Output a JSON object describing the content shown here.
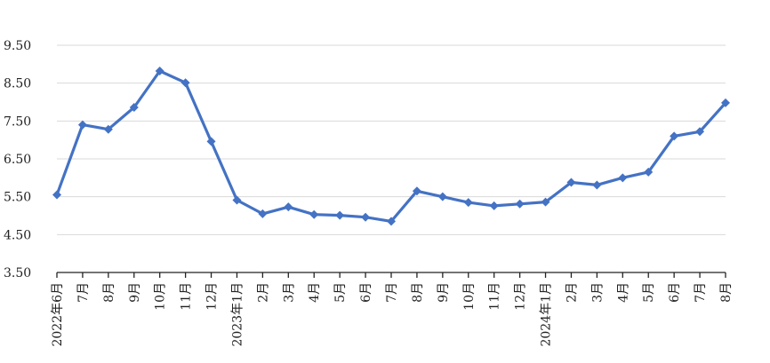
{
  "colors": {
    "series_line": "#4472C4",
    "gridline": "#D9D9D9",
    "axis": "#222222",
    "background": "#FFFFFF"
  },
  "chart_data": {
    "type": "line",
    "title": "",
    "xlabel": "",
    "ylabel": "",
    "ylim": [
      3.5,
      9.5
    ],
    "y_ticks": [
      3.5,
      4.5,
      5.5,
      6.5,
      7.5,
      8.5,
      9.5
    ],
    "y_tick_labels": [
      "3.50",
      "4.50",
      "5.50",
      "6.50",
      "7.50",
      "8.50",
      "9.50"
    ],
    "grid": "horizontal",
    "legend": "none",
    "marker": "diamond",
    "categories": [
      "2022年6月",
      "7月",
      "8月",
      "9月",
      "10月",
      "11月",
      "12月",
      "2023年1月",
      "2月",
      "3月",
      "4月",
      "5月",
      "6月",
      "7月",
      "8月",
      "9月",
      "10月",
      "11月",
      "12月",
      "2024年1月",
      "2月",
      "3月",
      "4月",
      "5月",
      "6月",
      "7月",
      "8月"
    ],
    "series": [
      {
        "values": [
          5.55,
          7.4,
          7.28,
          7.86,
          8.82,
          8.51,
          6.96,
          5.41,
          5.05,
          5.23,
          5.03,
          5.01,
          4.96,
          4.85,
          5.65,
          5.5,
          5.35,
          5.26,
          5.31,
          5.36,
          5.88,
          5.81,
          6.0,
          6.15,
          7.1,
          7.22,
          7.98
        ]
      }
    ]
  }
}
